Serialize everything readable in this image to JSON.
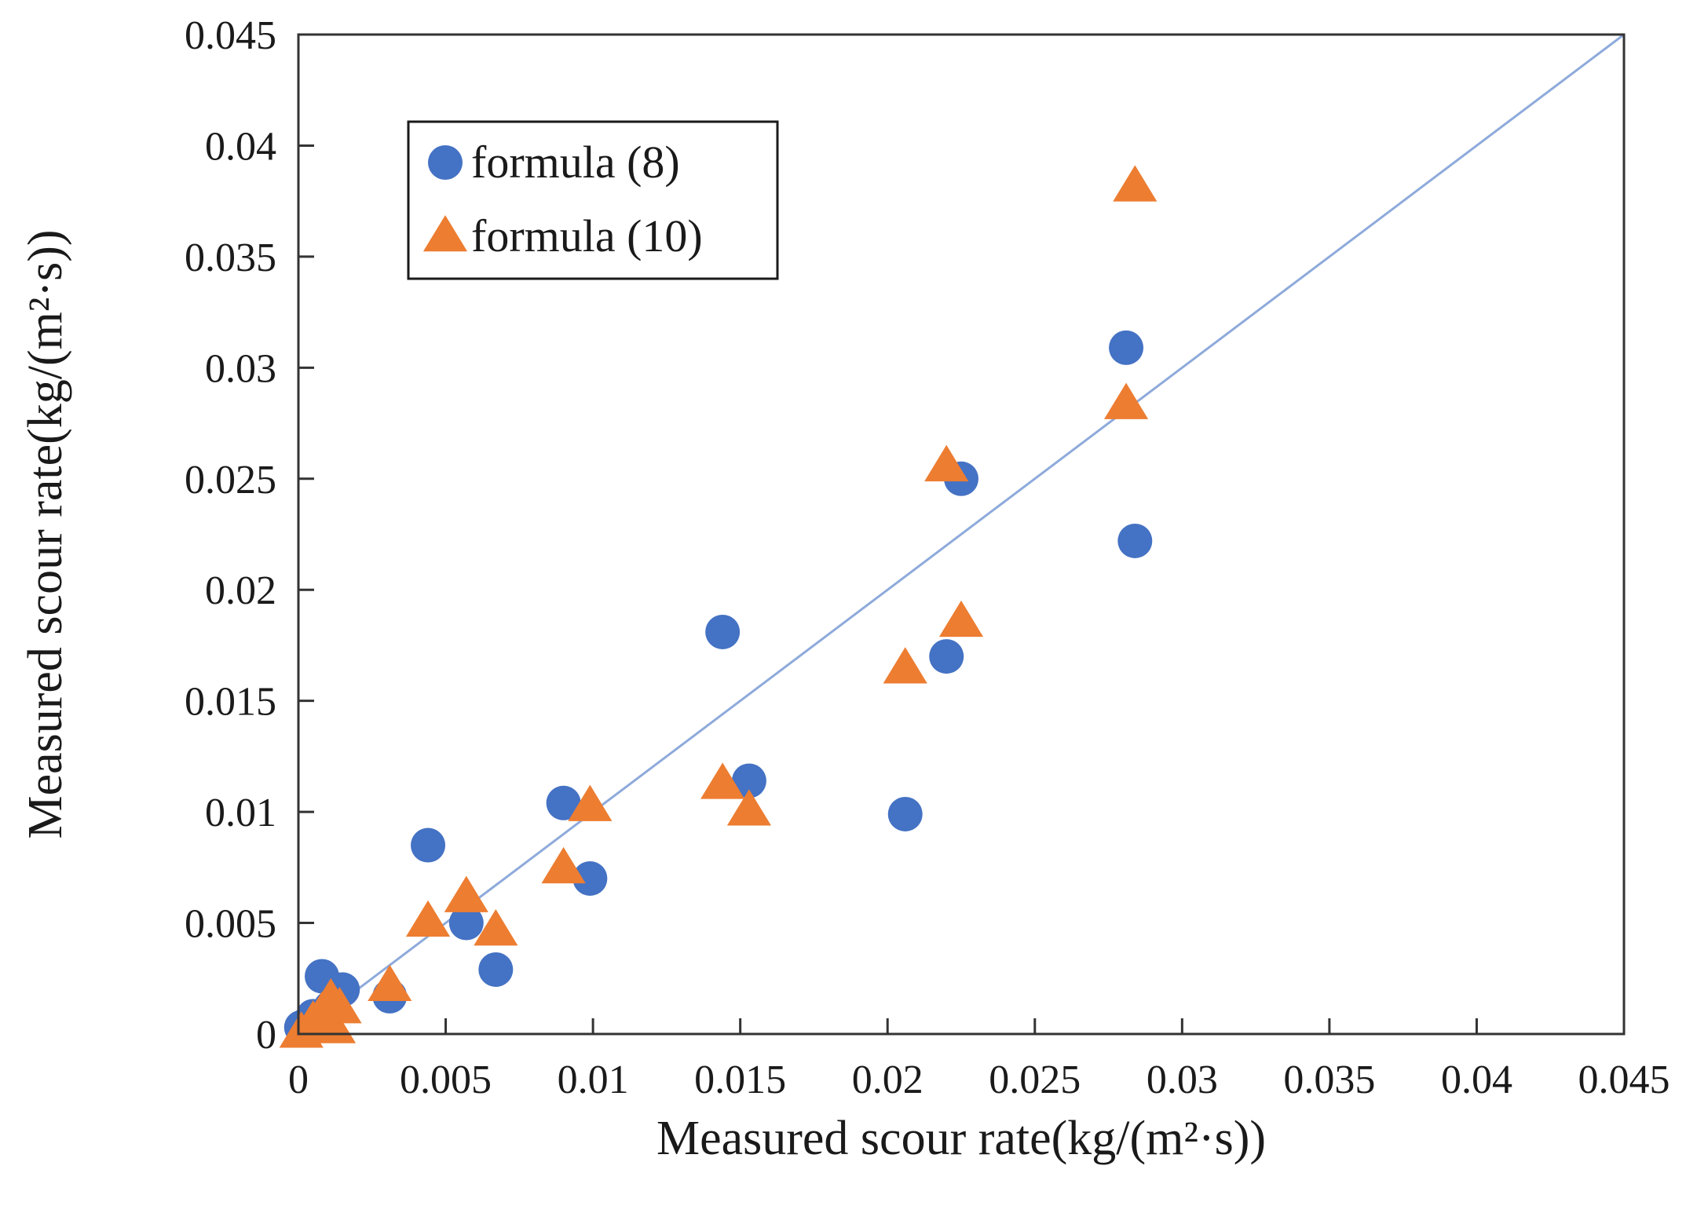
{
  "chart_data": {
    "type": "scatter",
    "xlabel": "Measured scour rate(kg/(m²·s))",
    "ylabel": "Measured scour rate(kg/(m²·s))",
    "xlim": [
      0,
      0.045
    ],
    "ylim": [
      0,
      0.045
    ],
    "x_ticks": [
      "0",
      "0.005",
      "0.01",
      "0.015",
      "0.02",
      "0.025",
      "0.03",
      "0.035",
      "0.04",
      "0.045"
    ],
    "y_ticks": [
      "0",
      "0.005",
      "0.01",
      "0.015",
      "0.02",
      "0.025",
      "0.03",
      "0.035",
      "0.04",
      "0.045"
    ],
    "grid": false,
    "legend_position": "top-left",
    "reference_line": {
      "type": "y=x",
      "color": "#8eaadb"
    },
    "series": [
      {
        "name": "formula (8)",
        "marker": "circle",
        "color": "#4472c4",
        "points": [
          [
            0.0001,
            0.0003
          ],
          [
            0.0008,
            0.0026
          ],
          [
            0.0015,
            0.002
          ],
          [
            0.0011,
            0.0012
          ],
          [
            0.0005,
            0.0008
          ],
          [
            0.0031,
            0.0017
          ],
          [
            0.0044,
            0.0085
          ],
          [
            0.0057,
            0.005
          ],
          [
            0.0067,
            0.0029
          ],
          [
            0.009,
            0.0104
          ],
          [
            0.0099,
            0.007
          ],
          [
            0.0144,
            0.0181
          ],
          [
            0.0153,
            0.0114
          ],
          [
            0.0206,
            0.0099
          ],
          [
            0.022,
            0.017
          ],
          [
            0.0225,
            0.025
          ],
          [
            0.0281,
            0.0309
          ],
          [
            0.0284,
            0.0222
          ]
        ]
      },
      {
        "name": "formula (10)",
        "marker": "triangle",
        "color": "#ed7d31",
        "points": [
          [
            0.0001,
            0.0001
          ],
          [
            0.0005,
            0.0006
          ],
          [
            0.0008,
            0.001
          ],
          [
            0.0011,
            0.0016
          ],
          [
            0.0014,
            0.0012
          ],
          [
            0.0012,
            0.0003
          ],
          [
            0.0031,
            0.0022
          ],
          [
            0.0044,
            0.0051
          ],
          [
            0.0057,
            0.0062
          ],
          [
            0.0067,
            0.0047
          ],
          [
            0.009,
            0.0075
          ],
          [
            0.0099,
            0.0103
          ],
          [
            0.0144,
            0.0113
          ],
          [
            0.0153,
            0.0101
          ],
          [
            0.0206,
            0.0165
          ],
          [
            0.022,
            0.0256
          ],
          [
            0.0225,
            0.0186
          ],
          [
            0.0281,
            0.0284
          ],
          [
            0.0284,
            0.0382
          ]
        ]
      }
    ]
  }
}
